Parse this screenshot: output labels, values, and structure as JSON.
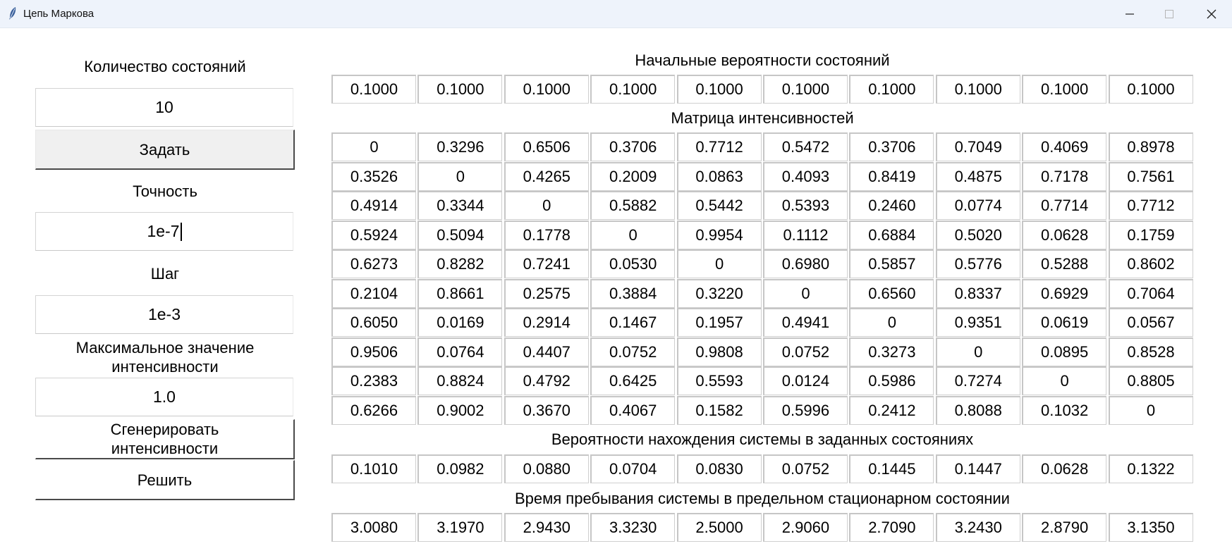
{
  "window": {
    "title": "Цепь Маркова"
  },
  "left_panel": {
    "states_label": "Количество состояний",
    "states_value": "10",
    "set_button": "Задать",
    "precision_label": "Точность",
    "precision_value": "1e-7",
    "step_label": "Шаг",
    "step_value": "1e-3",
    "max_intensity_label_line1": "Максимальное значение",
    "max_intensity_label_line2": "интенсивности",
    "max_intensity_value": "1.0",
    "generate_button_line1": "Сгенерировать",
    "generate_button_line2": "интенсивности",
    "solve_button": "Решить"
  },
  "initial_probabilities": {
    "title": "Начальные вероятности состояний",
    "values": [
      "0.1000",
      "0.1000",
      "0.1000",
      "0.1000",
      "0.1000",
      "0.1000",
      "0.1000",
      "0.1000",
      "0.1000",
      "0.1000"
    ]
  },
  "intensity_matrix": {
    "title": "Матрица интенсивностей",
    "rows": [
      [
        "0",
        "0.3296",
        "0.6506",
        "0.3706",
        "0.7712",
        "0.5472",
        "0.3706",
        "0.7049",
        "0.4069",
        "0.8978"
      ],
      [
        "0.3526",
        "0",
        "0.4265",
        "0.2009",
        "0.0863",
        "0.4093",
        "0.8419",
        "0.4875",
        "0.7178",
        "0.7561"
      ],
      [
        "0.4914",
        "0.3344",
        "0",
        "0.5882",
        "0.5442",
        "0.5393",
        "0.2460",
        "0.0774",
        "0.7714",
        "0.7712"
      ],
      [
        "0.5924",
        "0.5094",
        "0.1778",
        "0",
        "0.9954",
        "0.1112",
        "0.6884",
        "0.5020",
        "0.0628",
        "0.1759"
      ],
      [
        "0.6273",
        "0.8282",
        "0.7241",
        "0.0530",
        "0",
        "0.6980",
        "0.5857",
        "0.5776",
        "0.5288",
        "0.8602"
      ],
      [
        "0.2104",
        "0.8661",
        "0.2575",
        "0.3884",
        "0.3220",
        "0",
        "0.6560",
        "0.8337",
        "0.6929",
        "0.7064"
      ],
      [
        "0.6050",
        "0.0169",
        "0.2914",
        "0.1467",
        "0.1957",
        "0.4941",
        "0",
        "0.9351",
        "0.0619",
        "0.0567"
      ],
      [
        "0.9506",
        "0.0764",
        "0.4407",
        "0.0752",
        "0.9808",
        "0.0752",
        "0.3273",
        "0",
        "0.0895",
        "0.8528"
      ],
      [
        "0.2383",
        "0.8824",
        "0.4792",
        "0.6425",
        "0.5593",
        "0.0124",
        "0.5986",
        "0.7274",
        "0",
        "0.8805"
      ],
      [
        "0.6266",
        "0.9002",
        "0.3670",
        "0.4067",
        "0.1582",
        "0.5996",
        "0.2412",
        "0.8088",
        "0.1032",
        "0"
      ]
    ]
  },
  "state_probabilities": {
    "title": "Вероятности нахождения системы в заданных состояниях",
    "values": [
      "0.1010",
      "0.0982",
      "0.0880",
      "0.0704",
      "0.0830",
      "0.0752",
      "0.1445",
      "0.1447",
      "0.0628",
      "0.1322"
    ]
  },
  "stationary_times": {
    "title": "Время пребывания системы в предельном стационарном состоянии",
    "values": [
      "3.0080",
      "3.1970",
      "2.9430",
      "3.3230",
      "2.5000",
      "2.9060",
      "2.7090",
      "3.2430",
      "2.8790",
      "3.1350"
    ]
  }
}
